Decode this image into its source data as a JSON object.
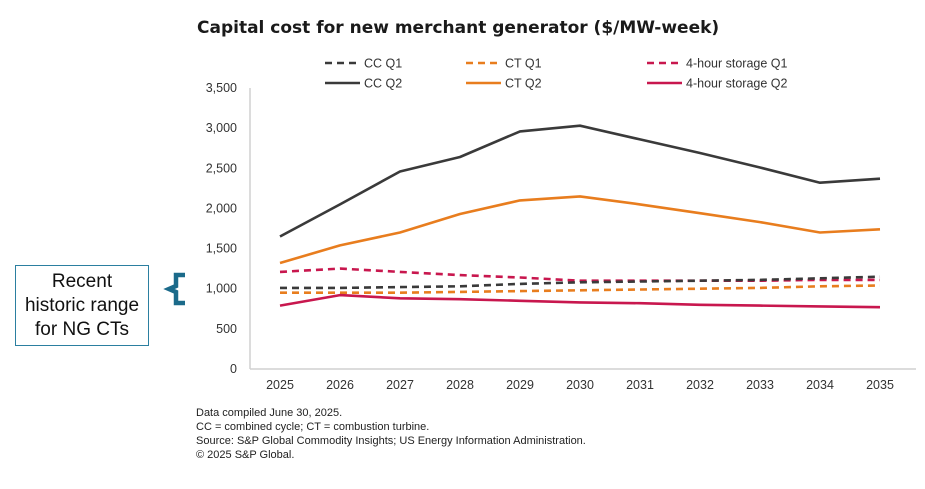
{
  "chart_data": {
    "type": "line",
    "title": "Capital cost for new merchant generator ($/MW-week)",
    "xlabel": "",
    "ylabel": "",
    "ylim": [
      0,
      3500
    ],
    "yticks": [
      0,
      500,
      1000,
      1500,
      2000,
      2500,
      3000,
      3500
    ],
    "ytick_labels": [
      "0",
      "500",
      "1,000",
      "1,500",
      "2,000",
      "2,500",
      "3,000",
      "3,500"
    ],
    "categories": [
      "2025",
      "2026",
      "2027",
      "2028",
      "2029",
      "2030",
      "2031",
      "2032",
      "2033",
      "2034",
      "2035"
    ],
    "grid": false,
    "legend_position": "top",
    "series": [
      {
        "name": "CC Q1",
        "color": "#3a3a3a",
        "style": "dashed",
        "values": [
          1010,
          1010,
          1020,
          1030,
          1060,
          1080,
          1090,
          1100,
          1110,
          1130,
          1150
        ]
      },
      {
        "name": "CT Q1",
        "color": "#e87d1e",
        "style": "dashed",
        "values": [
          950,
          950,
          950,
          960,
          970,
          980,
          990,
          1000,
          1010,
          1030,
          1040
        ]
      },
      {
        "name": "4-hour storage Q1",
        "color": "#c8174e",
        "style": "dashed",
        "values": [
          1210,
          1250,
          1210,
          1170,
          1140,
          1100,
          1100,
          1100,
          1100,
          1110,
          1110
        ]
      },
      {
        "name": "CC Q2",
        "color": "#3a3a3a",
        "style": "solid",
        "values": [
          1650,
          2050,
          2460,
          2640,
          2960,
          3030,
          2860,
          2690,
          2510,
          2320,
          2370
        ]
      },
      {
        "name": "CT Q2",
        "color": "#e87d1e",
        "style": "solid",
        "values": [
          1320,
          1540,
          1700,
          1930,
          2100,
          2150,
          2050,
          1940,
          1830,
          1700,
          1740
        ]
      },
      {
        "name": "4-hour storage Q2",
        "color": "#c8174e",
        "style": "solid",
        "values": [
          790,
          920,
          880,
          870,
          850,
          830,
          820,
          800,
          790,
          780,
          770
        ]
      }
    ],
    "annotation": {
      "text_lines": [
        "Recent",
        "historic range",
        "for NG CTs"
      ],
      "range": [
        950,
        1300
      ],
      "color": "#1b6a8a"
    }
  },
  "notes": [
    "Data compiled June 30, 2025.",
    "CC = combined cycle; CT = combustion turbine.",
    "Source: S&P Global Commodity Insights; US Energy Information Administration.",
    "© 2025 S&P Global."
  ]
}
